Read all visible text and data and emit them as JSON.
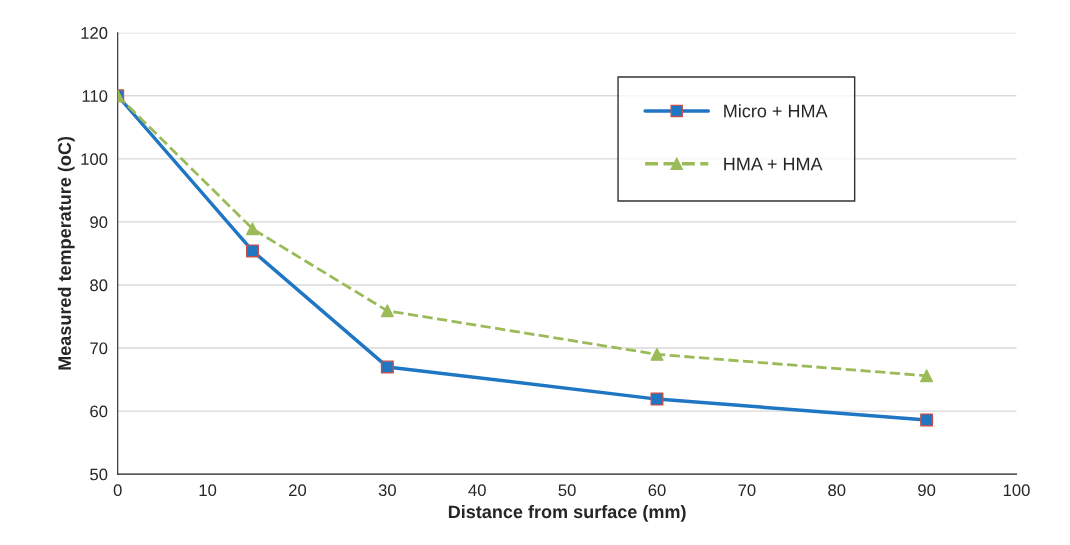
{
  "chart_data": {
    "type": "line",
    "xlabel": "Distance from surface (mm)",
    "ylabel": "Measured temperature (oC)",
    "x": [
      0,
      15,
      30,
      60,
      90
    ],
    "series": [
      {
        "name": "Micro + HMA",
        "color": "#1f77c4",
        "values": [
          110,
          85.4,
          67,
          61.9,
          58.6
        ],
        "marker": "square",
        "line_style": "solid"
      },
      {
        "name": "HMA + HMA",
        "color": "#9bbb59",
        "values": [
          110,
          88.9,
          75.9,
          69,
          65.6
        ],
        "marker": "triangle",
        "line_style": "dashed"
      }
    ],
    "xlim": [
      0,
      100
    ],
    "xticks": [
      0,
      10,
      20,
      30,
      40,
      50,
      60,
      70,
      80,
      90,
      100
    ],
    "ylim": [
      50,
      120
    ],
    "yticks": [
      50,
      60,
      70,
      80,
      90,
      100,
      110,
      120
    ],
    "grid": "y",
    "legend": "top right"
  }
}
